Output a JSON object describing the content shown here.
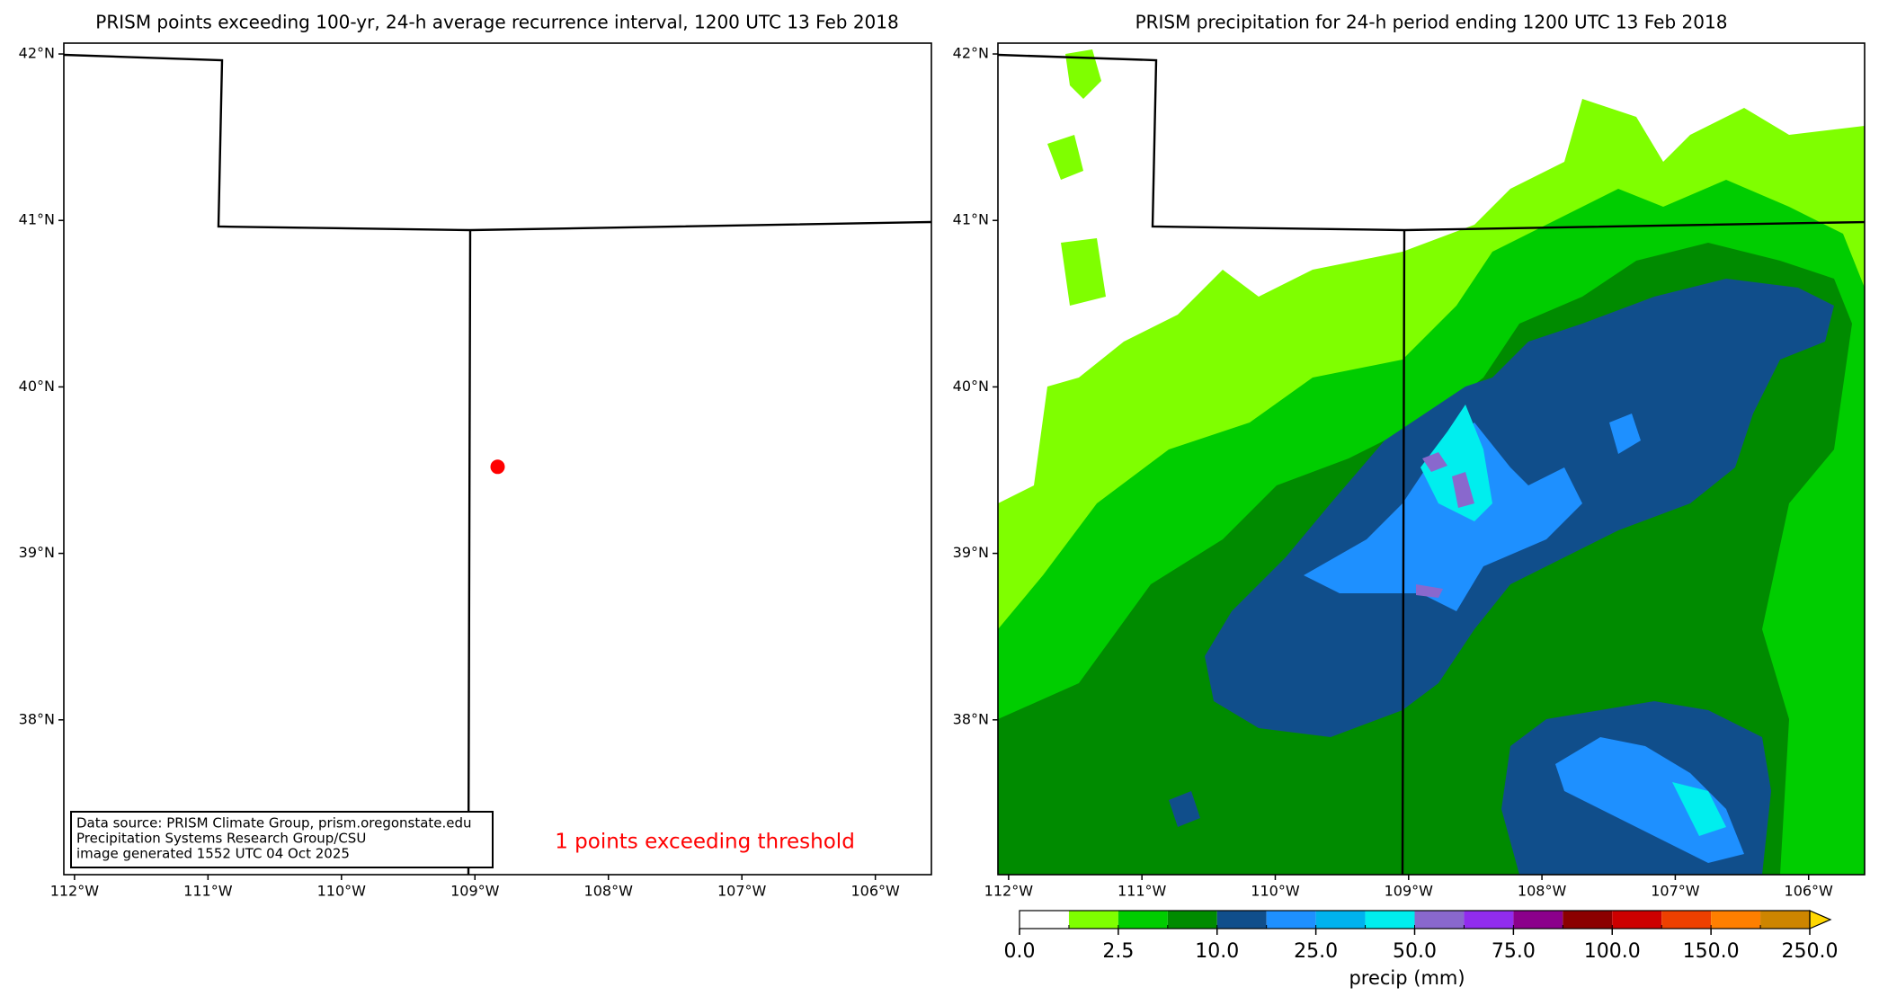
{
  "left_map": {
    "title": "PRISM points exceeding 100-yr, 24-h average recurrence interval, 1200 UTC 13 Feb 2018",
    "xlim": [
      -112.08,
      -105.58
    ],
    "ylim": [
      37.07,
      42.065
    ],
    "lat_ticks": [
      {
        "value": 42,
        "label": "42°N"
      },
      {
        "value": 41,
        "label": "41°N"
      },
      {
        "value": 40,
        "label": "40°N"
      },
      {
        "value": 39,
        "label": "39°N"
      },
      {
        "value": 38,
        "label": "38°N"
      }
    ],
    "lon_ticks": [
      {
        "value": -112,
        "label": "112°W"
      },
      {
        "value": -111,
        "label": "111°W"
      },
      {
        "value": -110,
        "label": "110°W"
      },
      {
        "value": -109,
        "label": "109°W"
      },
      {
        "value": -108,
        "label": "108°W"
      },
      {
        "value": -107,
        "label": "107°W"
      },
      {
        "value": -106,
        "label": "106°W"
      }
    ],
    "points": [
      {
        "lon": -108.83,
        "lat": 39.52,
        "color": "#ff0000"
      }
    ],
    "summary": "1 points exceeding threshold",
    "source_lines": [
      "Data source: PRISM Climate Group, prism.oregonstate.edu",
      "Precipitation Systems Research Group/CSU",
      "image generated 1552 UTC 04 Oct 2025"
    ]
  },
  "right_map": {
    "title": "PRISM precipitation for 24-h period ending 1200 UTC 13 Feb 2018",
    "xlim": [
      -112.08,
      -105.58
    ],
    "ylim": [
      37.07,
      42.065
    ],
    "lat_ticks": [
      {
        "value": 42,
        "label": "42°N"
      },
      {
        "value": 41,
        "label": "41°N"
      },
      {
        "value": 40,
        "label": "40°N"
      },
      {
        "value": 39,
        "label": "39°N"
      },
      {
        "value": 38,
        "label": "38°N"
      }
    ],
    "lon_ticks": [
      {
        "value": -112,
        "label": "112°W"
      },
      {
        "value": -111,
        "label": "111°W"
      },
      {
        "value": -110,
        "label": "110°W"
      },
      {
        "value": -109,
        "label": "109°W"
      },
      {
        "value": -108,
        "label": "108°W"
      },
      {
        "value": -107,
        "label": "107°W"
      },
      {
        "value": -106,
        "label": "106°W"
      }
    ],
    "colorbar": {
      "levels": [
        0,
        1,
        2.5,
        5,
        10,
        15,
        25,
        35,
        50,
        60,
        75,
        85,
        100,
        125,
        150,
        200,
        250
      ],
      "colors": [
        "#ffffff",
        "#7fff00",
        "#00cd00",
        "#008b00",
        "#104e8b",
        "#1e90ff",
        "#00b2ee",
        "#00eeee",
        "#8968cd",
        "#912cee",
        "#8b008b",
        "#8b0000",
        "#cd0000",
        "#ee4000",
        "#ff7f00",
        "#cd8500"
      ],
      "extend_color": "#ffd700",
      "ticks": [
        {
          "value": 0,
          "label": "0.0"
        },
        {
          "value": 2.5,
          "label": "2.5"
        },
        {
          "value": 10,
          "label": "10.0"
        },
        {
          "value": 25,
          "label": "25.0"
        },
        {
          "value": 50,
          "label": "50.0"
        },
        {
          "value": 75,
          "label": "75.0"
        },
        {
          "value": 100,
          "label": "100.0"
        },
        {
          "value": 150,
          "label": "150.0"
        },
        {
          "value": 250,
          "label": "250.0"
        }
      ],
      "label": "precip (mm)"
    }
  }
}
